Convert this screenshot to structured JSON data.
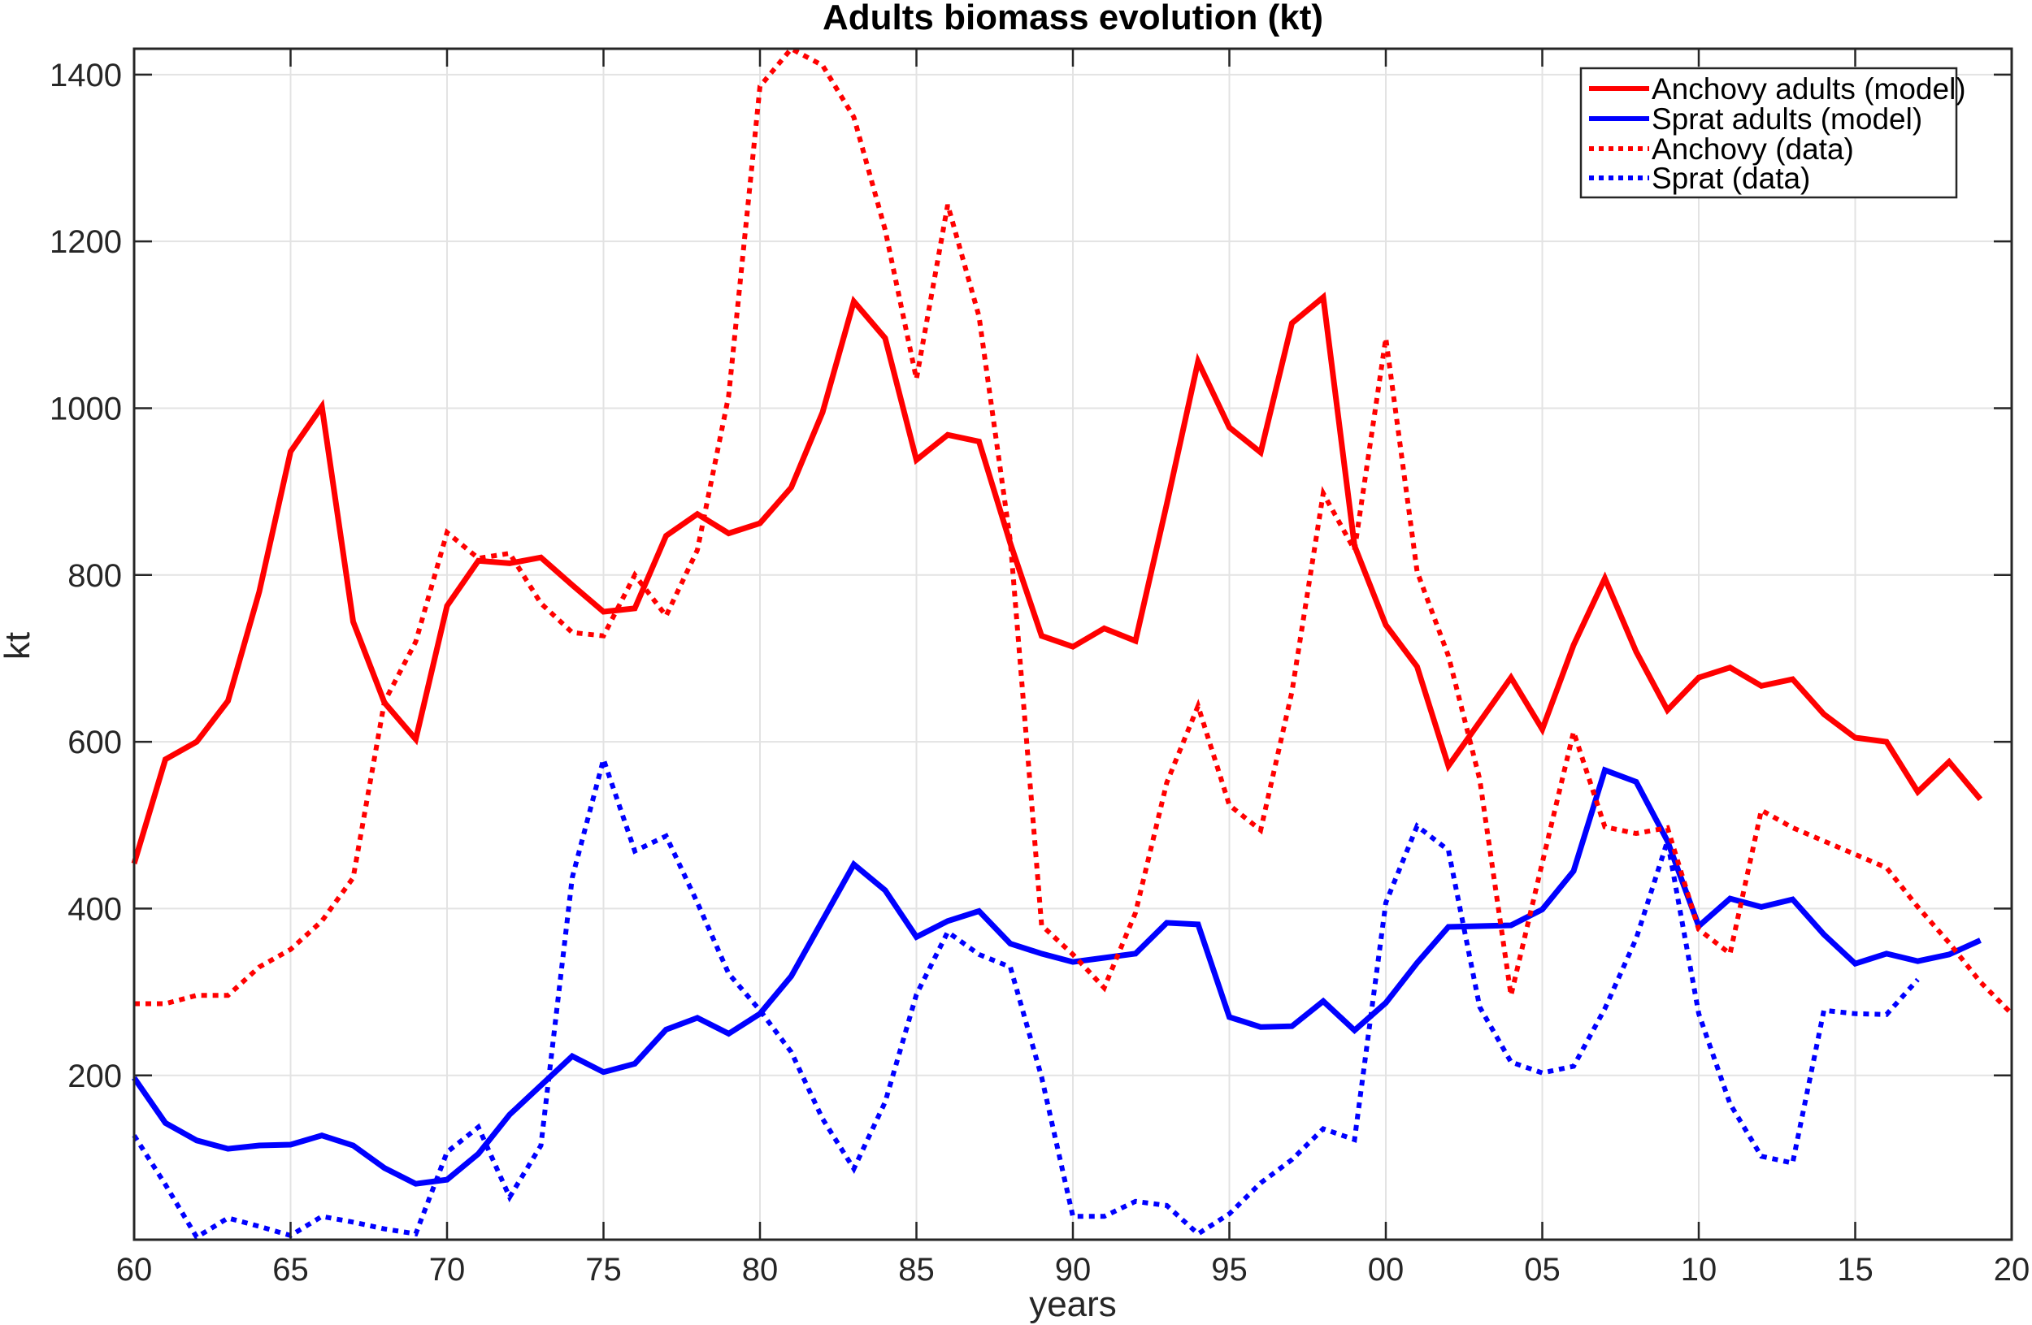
{
  "chart_data": {
    "type": "line",
    "title": "Adults biomass evolution (kt)",
    "xlabel": "years",
    "ylabel": "kt",
    "xlim": [
      1960,
      2020
    ],
    "ylim": [
      3,
      1431
    ],
    "grid": true,
    "legend_position": "upper right",
    "x_ticks": [
      1960,
      1965,
      1970,
      1975,
      1980,
      1985,
      1990,
      1995,
      2000,
      2005,
      2010,
      2015,
      2020
    ],
    "x_tick_labels": [
      "60",
      "65",
      "70",
      "75",
      "80",
      "85",
      "90",
      "95",
      "00",
      "05",
      "10",
      "15",
      "20"
    ],
    "y_ticks": [
      200,
      400,
      600,
      800,
      1000,
      1200,
      1400
    ],
    "y_tick_labels": [
      "200",
      "400",
      "600",
      "800",
      "1000",
      "1200",
      "1400"
    ],
    "series": [
      {
        "name": "Anchovy adults (model)",
        "color": "#ff0000",
        "style": "solid",
        "x_start": 1960,
        "values": [
          454,
          579,
          600,
          649,
          780,
          948,
          1002,
          744,
          647,
          603,
          763,
          817,
          814,
          821,
          788,
          756,
          760,
          847,
          873,
          850,
          862,
          905,
          995,
          1128,
          1084,
          938,
          968,
          960,
          838,
          727,
          714,
          736,
          721,
          885,
          1056,
          977,
          947,
          1102,
          1133,
          835,
          740,
          690,
          571,
          624,
          677,
          615,
          716,
          796,
          708,
          638,
          677,
          689,
          667,
          675,
          633,
          605,
          600,
          540,
          576,
          531
        ]
      },
      {
        "name": "Sprat adults (model)",
        "color": "#0000ff",
        "style": "solid",
        "x_start": 1960,
        "values": [
          197,
          143,
          122,
          112,
          116,
          117,
          128,
          116,
          89,
          70,
          75,
          106,
          153,
          188,
          223,
          204,
          214,
          255,
          269,
          250,
          274,
          319,
          386,
          453,
          422,
          366,
          385,
          397,
          358,
          346,
          336,
          341,
          346,
          383,
          381,
          270,
          258,
          259,
          289,
          254,
          287,
          335,
          378,
          379,
          380,
          399,
          445,
          566,
          552,
          481,
          379,
          412,
          402,
          411,
          369,
          334,
          346,
          337,
          345,
          362
        ]
      },
      {
        "name": "Anchovy (data)",
        "color": "#ff0000",
        "style": "dotted",
        "x_start": 1960,
        "values": [
          286,
          286,
          296,
          296,
          330,
          351,
          385,
          437,
          648,
          720,
          851,
          820,
          826,
          766,
          731,
          727,
          800,
          751,
          830,
          1015,
          1386,
          1431,
          1411,
          1349,
          1214,
          1035,
          1244,
          1110,
          841,
          380,
          345,
          305,
          395,
          551,
          643,
          524,
          494,
          660,
          898,
          830,
          1084,
          804,
          703,
          555,
          296,
          455,
          612,
          498,
          490,
          497,
          375,
          346,
          518,
          497,
          481,
          465,
          449,
          402,
          359,
          312,
          274
        ]
      },
      {
        "name": "Sprat (data)",
        "color": "#0000ff",
        "style": "dotted",
        "x_start": 1960,
        "values": [
          128,
          69,
          6,
          29,
          19,
          8,
          31,
          24,
          16,
          10,
          108,
          138,
          54,
          116,
          437,
          579,
          469,
          487,
          407,
          322,
          278,
          228,
          148,
          88,
          168,
          297,
          372,
          345,
          330,
          198,
          31,
          31,
          49,
          44,
          10,
          34,
          71,
          99,
          136,
          123,
          407,
          499,
          470,
          282,
          216,
          203,
          211,
          280,
          364,
          481,
          274,
          166,
          103,
          95,
          278,
          274,
          273,
          315
        ]
      }
    ]
  },
  "legend": {
    "items": [
      {
        "label": "Anchovy adults (model)",
        "color": "#ff0000",
        "style": "solid"
      },
      {
        "label": "Sprat adults (model)",
        "color": "#0000ff",
        "style": "solid"
      },
      {
        "label": "Anchovy (data)",
        "color": "#ff0000",
        "style": "dotted"
      },
      {
        "label": "Sprat (data)",
        "color": "#0000ff",
        "style": "dotted"
      }
    ]
  }
}
